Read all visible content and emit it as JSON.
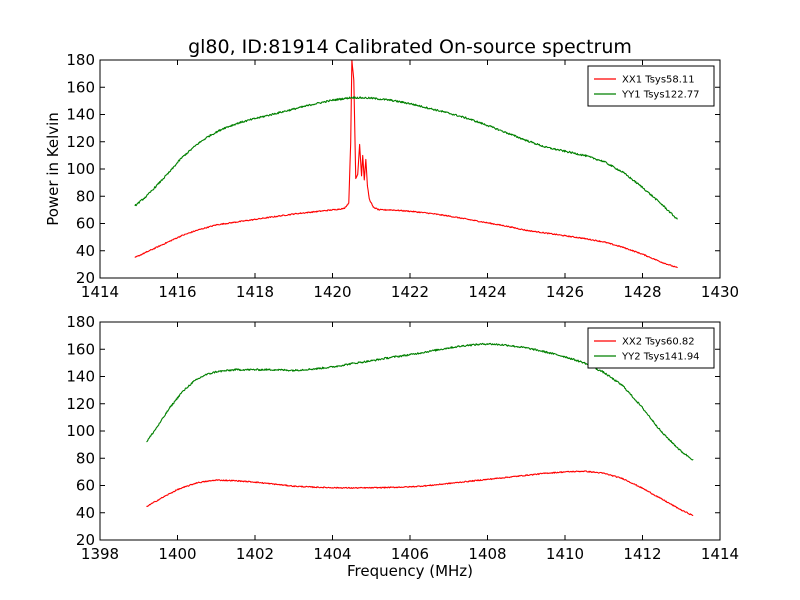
{
  "figure": {
    "title": "gl80, ID:81914 Calibrated On-source spectrum",
    "ylabel": "Power in Kelvin",
    "xlabel": "Frequency (MHz)"
  },
  "chart_data": [
    {
      "type": "line",
      "title": "gl80, ID:81914 Calibrated On-source spectrum",
      "xlabel": "",
      "ylabel": "Power in Kelvin",
      "xlim": [
        1414,
        1430
      ],
      "ylim": [
        20,
        180
      ],
      "xticks": [
        1414,
        1416,
        1418,
        1420,
        1422,
        1424,
        1426,
        1428,
        1430
      ],
      "yticks": [
        20,
        40,
        60,
        80,
        100,
        120,
        140,
        160,
        180
      ],
      "grid": false,
      "legend": "top-right",
      "series": [
        {
          "name": "XX1 Tsys58.11",
          "color": "#ff0000",
          "x": [
            1414.9,
            1415.2,
            1415.5,
            1415.8,
            1416.1,
            1416.5,
            1417.0,
            1417.5,
            1418.0,
            1418.5,
            1419.0,
            1419.5,
            1420.0,
            1420.3,
            1420.42,
            1420.47,
            1420.5,
            1420.55,
            1420.6,
            1420.65,
            1420.7,
            1420.75,
            1420.78,
            1420.82,
            1420.86,
            1420.9,
            1420.95,
            1421.05,
            1421.2,
            1421.5,
            1422.0,
            1422.5,
            1423.0,
            1423.5,
            1424.0,
            1424.5,
            1425.0,
            1425.5,
            1426.0,
            1426.5,
            1427.0,
            1427.5,
            1428.0,
            1428.5,
            1428.9
          ],
          "values": [
            35,
            39,
            43,
            47,
            51,
            55,
            59,
            61,
            63,
            65,
            67,
            68.5,
            70,
            71,
            75,
            120,
            180,
            165,
            93,
            96,
            118,
            95,
            110,
            92,
            107,
            88,
            78,
            72,
            70,
            70,
            69,
            67.5,
            65.5,
            63,
            60.5,
            58,
            55,
            53,
            51,
            49,
            46.5,
            42.5,
            37.5,
            31.5,
            27.5
          ]
        },
        {
          "name": "YY1 Tsys122.77",
          "color": "#008000",
          "x": [
            1414.9,
            1415.2,
            1415.5,
            1415.8,
            1416.1,
            1416.5,
            1416.8,
            1417.2,
            1417.6,
            1418.0,
            1418.5,
            1419.0,
            1419.5,
            1420.0,
            1420.5,
            1421.0,
            1421.5,
            1422.0,
            1422.5,
            1423.0,
            1423.5,
            1424.0,
            1424.5,
            1425.0,
            1425.5,
            1426.0,
            1426.5,
            1427.0,
            1427.5,
            1428.0,
            1428.5,
            1428.9
          ],
          "values": [
            73,
            80,
            89,
            98,
            108,
            118,
            124,
            130,
            134,
            137,
            140.5,
            144,
            147.5,
            150.5,
            152.5,
            152,
            150.5,
            148,
            144.5,
            141,
            137,
            132,
            126.5,
            121,
            116,
            113,
            110,
            105.5,
            97.5,
            86.5,
            74,
            63
          ]
        }
      ]
    },
    {
      "type": "line",
      "title": "",
      "xlabel": "Frequency (MHz)",
      "ylabel": "",
      "xlim": [
        1398,
        1414
      ],
      "ylim": [
        20,
        180
      ],
      "xticks": [
        1398,
        1400,
        1402,
        1404,
        1406,
        1408,
        1410,
        1412,
        1414
      ],
      "yticks": [
        20,
        40,
        60,
        80,
        100,
        120,
        140,
        160,
        180
      ],
      "grid": false,
      "legend": "top-right",
      "series": [
        {
          "name": "XX2 Tsys60.82",
          "color": "#ff0000",
          "x": [
            1399.2,
            1399.6,
            1400.0,
            1400.5,
            1401.0,
            1401.5,
            1402.0,
            1402.5,
            1403.0,
            1403.5,
            1404.0,
            1404.5,
            1405.0,
            1405.5,
            1406.0,
            1406.5,
            1407.0,
            1407.5,
            1408.0,
            1408.5,
            1409.0,
            1409.5,
            1410.0,
            1410.5,
            1411.0,
            1411.5,
            1412.0,
            1412.5,
            1413.0,
            1413.3
          ],
          "values": [
            44.5,
            51,
            57,
            62,
            64,
            63.5,
            62.5,
            61,
            59.5,
            58.8,
            58.4,
            58.2,
            58.3,
            58.6,
            59,
            60,
            61.5,
            63,
            64.5,
            66,
            67.5,
            69,
            70,
            70.5,
            69,
            65,
            58,
            50,
            42,
            38
          ]
        },
        {
          "name": "YY2 Tsys141.94",
          "color": "#008000",
          "x": [
            1399.2,
            1399.5,
            1399.8,
            1400.1,
            1400.4,
            1400.7,
            1401.0,
            1401.5,
            1402.0,
            1402.5,
            1403.0,
            1403.5,
            1404.0,
            1404.5,
            1405.0,
            1405.5,
            1406.0,
            1406.5,
            1407.0,
            1407.5,
            1408.0,
            1408.5,
            1409.0,
            1409.5,
            1410.0,
            1410.5,
            1411.0,
            1411.5,
            1412.0,
            1412.5,
            1413.0,
            1413.3
          ],
          "values": [
            92,
            104,
            117,
            128,
            136,
            141,
            143.5,
            145,
            145,
            145,
            144.5,
            145.5,
            147,
            149.5,
            151.5,
            154,
            156,
            158.5,
            161,
            163,
            164,
            163,
            161,
            158,
            154.5,
            150,
            143,
            133,
            117,
            99,
            85,
            79
          ]
        }
      ]
    }
  ]
}
